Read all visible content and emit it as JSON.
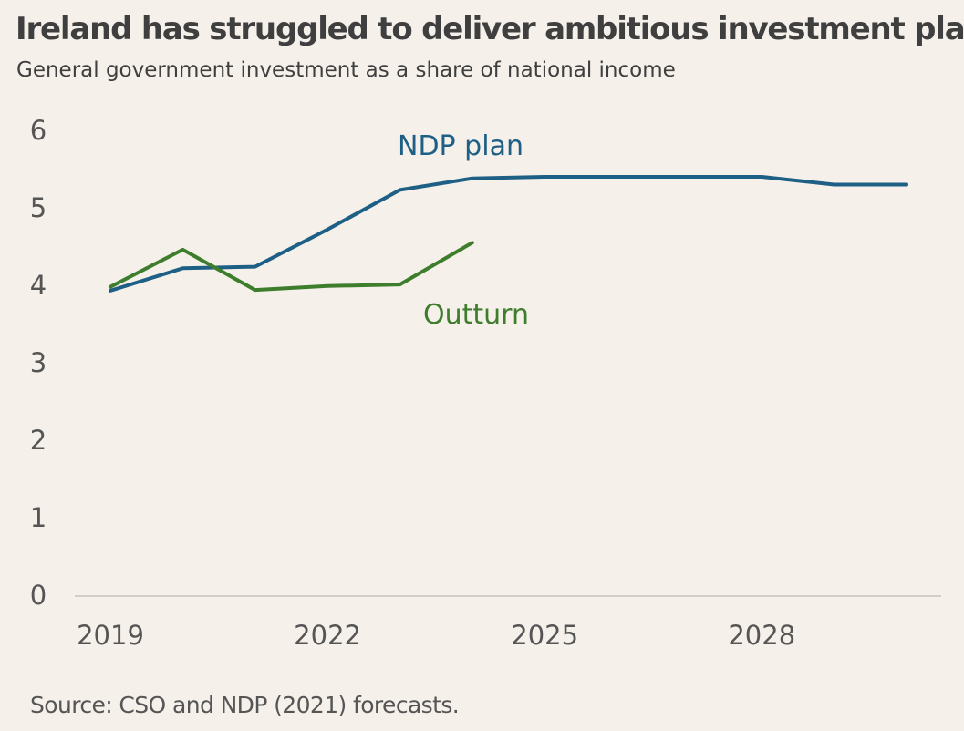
{
  "header": {
    "title": "Ireland has struggled to deliver ambitious investment plans",
    "subtitle": "General government investment as a share of national income"
  },
  "footer": {
    "source": "Source: CSO and NDP (2021) forecasts."
  },
  "colors": {
    "background": "#f5f0ea",
    "ndp_plan": "#1e5f85",
    "outturn": "#3e7d2c",
    "axis": "#c8c3bd",
    "text": "#3f3f3f"
  },
  "chart_data": {
    "type": "line",
    "title": "Ireland has struggled to deliver ambitious investment plans",
    "subtitle": "General government investment as a share of national income",
    "xlabel": "",
    "ylabel": "",
    "xlim": [
      2019,
      2030
    ],
    "ylim": [
      0,
      6
    ],
    "x_ticks": [
      2019,
      2022,
      2025,
      2028
    ],
    "y_ticks": [
      0,
      1,
      2,
      3,
      4,
      5,
      6
    ],
    "grid": false,
    "legend": "inline labels",
    "series": [
      {
        "name": "NDP plan",
        "color": "#1e5f85",
        "x": [
          2019,
          2020,
          2021,
          2022,
          2023,
          2024,
          2025,
          2026,
          2027,
          2028,
          2029,
          2030
        ],
        "values": [
          3.93,
          4.22,
          4.24,
          4.72,
          5.23,
          5.38,
          5.4,
          5.4,
          5.4,
          5.4,
          5.3,
          5.3
        ]
      },
      {
        "name": "Outturn",
        "color": "#3e7d2c",
        "x": [
          2019,
          2020,
          2021,
          2022,
          2023,
          2024
        ],
        "values": [
          3.98,
          4.46,
          3.94,
          3.99,
          4.01,
          4.55
        ]
      }
    ]
  }
}
